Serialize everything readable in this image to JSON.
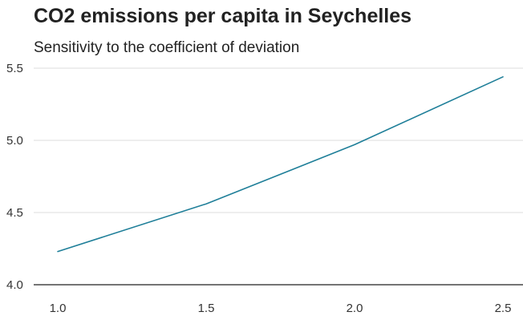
{
  "chart_data": {
    "type": "line",
    "title": "CO2 emissions per capita in Seychelles",
    "subtitle": "Sensitivity to the coefficient of deviation",
    "xlabel": "",
    "ylabel": "",
    "x": [
      1.0,
      1.5,
      2.0,
      2.5
    ],
    "x_tick_labels": [
      "1.0",
      "1.5",
      "2.0",
      "2.5"
    ],
    "y_ticks": [
      4.0,
      4.5,
      5.0,
      5.5
    ],
    "y_tick_labels": [
      "4.0",
      "4.5",
      "5.0",
      "5.5"
    ],
    "xlim": [
      1.0,
      2.5
    ],
    "ylim": [
      4.0,
      5.5
    ],
    "series": [
      {
        "values": [
          4.23,
          4.56,
          4.97,
          5.44
        ]
      }
    ],
    "grid": "horizontal",
    "legend": "none",
    "line_color": "#1f7f99",
    "grid_color": "#dddddd",
    "axis_color": "#222222"
  }
}
